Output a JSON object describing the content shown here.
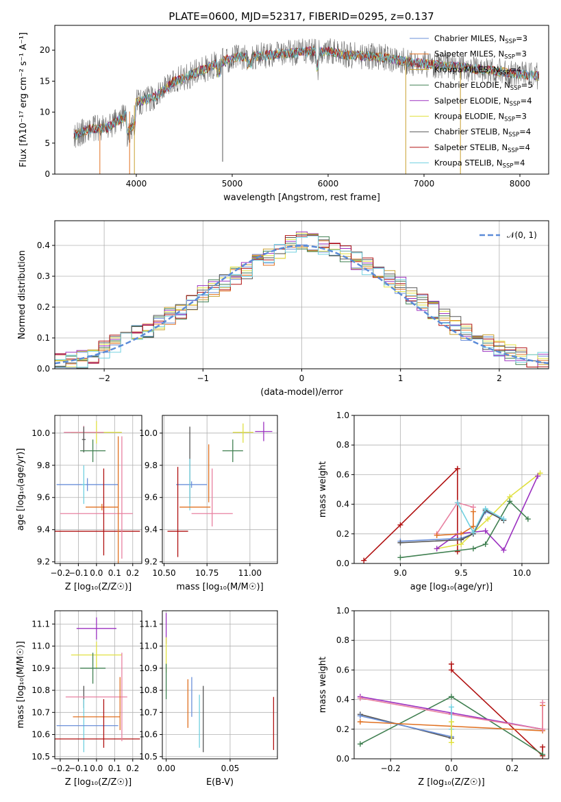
{
  "title": "PLATE=0600, MJD=52317, FIBERID=0295, z=0.137",
  "colors": {
    "miles_chabrier": "#6a8fd9",
    "miles_salpeter": "#e07020",
    "miles_kroupa": "#c8a030",
    "elodie_chabrier": "#3f7f50",
    "elodie_salpeter": "#9b30c0",
    "elodie_kroupa": "#e0e040",
    "stelib_chabrier": "#555555",
    "stelib_salpeter": "#b01010",
    "stelib_kroupa": "#70d0e0",
    "pink": "#e880a0",
    "green2": "#5a8a60"
  },
  "chart_data": [
    {
      "type": "line",
      "id": "spectrum",
      "xlabel": "wavelength [Angstrom, rest frame]",
      "ylabel": "Flux [fλ10⁻¹⁷ erg cm⁻² s⁻¹ A⁻¹]",
      "xlim": [
        3150,
        8300
      ],
      "ylim": [
        0,
        24
      ],
      "xticks": [
        4000,
        5000,
        6000,
        7000,
        8000
      ],
      "yticks": [
        0,
        5,
        10,
        15,
        20
      ],
      "legend": [
        {
          "label": "Chabrier MILES, N",
          "sub": "SSP",
          "suffix": "=3",
          "color": "#6a8fd9"
        },
        {
          "label": "Salpeter MILES, N",
          "sub": "SSP",
          "suffix": "=3",
          "color": "#e07020"
        },
        {
          "label": "Kroupa MILES, N",
          "sub": "SSP",
          "suffix": "=4",
          "color": "#c8a030"
        },
        {
          "label": "Chabrier ELODIE, N",
          "sub": "SSP",
          "suffix": "=5",
          "color": "#3f7f50"
        },
        {
          "label": "Salpeter ELODIE, N",
          "sub": "SSP",
          "suffix": "=4",
          "color": "#9b30c0"
        },
        {
          "label": "Kroupa ELODIE, N",
          "sub": "SSP",
          "suffix": "=3",
          "color": "#e0e040"
        },
        {
          "label": "Chabrier STELIB, N",
          "sub": "SSP",
          "suffix": "=4",
          "color": "#555555"
        },
        {
          "label": "Salpeter STELIB, N",
          "sub": "SSP",
          "suffix": "=4",
          "color": "#b01010"
        },
        {
          "label": "Kroupa STELIB, N",
          "sub": "SSP",
          "suffix": "=4",
          "color": "#70d0e0"
        }
      ],
      "continuum": [
        [
          3350,
          6.2
        ],
        [
          3500,
          7.2
        ],
        [
          3700,
          7.5
        ],
        [
          3900,
          9.5
        ],
        [
          4000,
          11.5
        ],
        [
          4200,
          12.5
        ],
        [
          4400,
          15.0
        ],
        [
          4600,
          16.2
        ],
        [
          4800,
          17.5
        ],
        [
          5000,
          18.8
        ],
        [
          5200,
          19.0
        ],
        [
          5400,
          19.2
        ],
        [
          5600,
          19.5
        ],
        [
          5800,
          19.8
        ],
        [
          6000,
          19.8
        ],
        [
          6200,
          19.2
        ],
        [
          6400,
          19.0
        ],
        [
          6600,
          18.8
        ],
        [
          6800,
          18.2
        ],
        [
          7000,
          17.8
        ],
        [
          7200,
          17.5
        ],
        [
          7400,
          17.2
        ],
        [
          7600,
          16.9
        ],
        [
          7800,
          16.5
        ],
        [
          8000,
          16.1
        ],
        [
          8200,
          15.8
        ]
      ]
    },
    {
      "type": "step",
      "id": "residuals",
      "xlabel": "(data-model)/error",
      "ylabel": "Normed distribution",
      "xlim": [
        -2.5,
        2.5
      ],
      "ylim": [
        0,
        0.48
      ],
      "xticks": [
        -2,
        -1,
        0,
        1,
        2
      ],
      "yticks": [
        0.0,
        0.1,
        0.2,
        0.3,
        0.4
      ],
      "legend_label": "𝒩(0, 1)",
      "legend_color": "#5b8bd8",
      "hist_base": [
        0.02,
        0.025,
        0.03,
        0.045,
        0.06,
        0.08,
        0.1,
        0.115,
        0.13,
        0.15,
        0.17,
        0.19,
        0.215,
        0.24,
        0.26,
        0.28,
        0.3,
        0.32,
        0.345,
        0.365,
        0.385,
        0.405,
        0.415,
        0.41,
        0.4,
        0.385,
        0.37,
        0.35,
        0.33,
        0.31,
        0.29,
        0.27,
        0.24,
        0.215,
        0.19,
        0.165,
        0.14,
        0.12,
        0.1,
        0.08,
        0.065,
        0.05,
        0.04,
        0.03,
        0.025
      ]
    },
    {
      "type": "errorbar",
      "id": "age-vs-Z",
      "xlabel": "Z [log₁₀(Z/Z☉)]",
      "ylabel": "age  [log₁₀(age/yr)]",
      "xlim": [
        -0.23,
        0.25
      ],
      "ylim": [
        9.19,
        10.11
      ],
      "xticks": [
        -0.2,
        -0.1,
        0.0,
        0.1,
        0.2
      ],
      "yticks": [
        9.2,
        9.4,
        9.6,
        9.8,
        10.0
      ],
      "points": [
        {
          "x": 0.0,
          "y": 10.005,
          "xe": 0.14,
          "ye": 0.07,
          "c": "#e0e040"
        },
        {
          "x": -0.07,
          "y": 10.005,
          "xe": 0.11,
          "ye": 0.04,
          "c": "#e880a0"
        },
        {
          "x": -0.07,
          "y": 9.96,
          "xe": 0.01,
          "ye": 0.08,
          "c": "#555555"
        },
        {
          "x": -0.02,
          "y": 9.89,
          "xe": 0.07,
          "ye": 0.07,
          "c": "#3f7f50"
        },
        {
          "x": -0.05,
          "y": 9.68,
          "xe": 0.17,
          "ye": 0.04,
          "c": "#6a8fd9"
        },
        {
          "x": -0.07,
          "y": 9.68,
          "xe": 0.01,
          "ye": 0.12,
          "c": "#70d0e0"
        },
        {
          "x": 0.03,
          "y": 9.54,
          "xe": 0.09,
          "ye": 0.02,
          "c": "#e07020"
        },
        {
          "x": 0.0,
          "y": 9.5,
          "xe": 0.2,
          "ye": 0.0,
          "c": "#e880a0"
        },
        {
          "x": 0.04,
          "y": 9.51,
          "xe": 0.0,
          "ye": 0.27,
          "c": "#b01010"
        },
        {
          "x": 0.0,
          "y": 9.39,
          "xe": 0.24,
          "ye": 0.0,
          "c": "#b01010"
        },
        {
          "x": 0.12,
          "y": 9.58,
          "xe": 0.0,
          "ye": 0.4,
          "c": "#e07020"
        },
        {
          "x": 0.14,
          "y": 9.6,
          "xe": 0.0,
          "ye": 0.38,
          "c": "#e880a0"
        }
      ]
    },
    {
      "type": "errorbar",
      "id": "age-vs-mass",
      "xlabel": "mass [log₁₀(M/M☉)]",
      "ylabel": "",
      "xlim": [
        10.49,
        11.16
      ],
      "ylim": [
        9.19,
        10.11
      ],
      "xticks": [
        10.5,
        10.75,
        11.0
      ],
      "yticks": [
        9.2,
        9.4,
        9.6,
        9.8,
        10.0
      ],
      "points": [
        {
          "x": 10.96,
          "y": 10.005,
          "xe": 0.06,
          "ye": 0.0,
          "c": "#e0e040"
        },
        {
          "x": 10.96,
          "y": 10.0,
          "xe": 0.0,
          "ye": 0.06,
          "c": "#e0e040"
        },
        {
          "x": 11.08,
          "y": 10.01,
          "xe": 0.05,
          "ye": 0.06,
          "c": "#9b30c0"
        },
        {
          "x": 10.9,
          "y": 9.89,
          "xe": 0.06,
          "ye": 0.07,
          "c": "#3f7f50"
        },
        {
          "x": 10.66,
          "y": 9.68,
          "xe": 0.09,
          "ye": 0.02,
          "c": "#6a8fd9"
        },
        {
          "x": 10.65,
          "y": 9.8,
          "xe": 0.0,
          "ye": 0.24,
          "c": "#555555"
        },
        {
          "x": 10.65,
          "y": 9.68,
          "xe": 0.0,
          "ye": 0.16,
          "c": "#70d0e0"
        },
        {
          "x": 10.68,
          "y": 9.54,
          "xe": 0.09,
          "ye": 0.0,
          "c": "#e07020"
        },
        {
          "x": 10.78,
          "y": 9.5,
          "xe": 0.12,
          "ye": 0.0,
          "c": "#e880a0"
        },
        {
          "x": 10.58,
          "y": 9.51,
          "xe": 0.0,
          "ye": 0.28,
          "c": "#b01010"
        },
        {
          "x": 10.58,
          "y": 9.39,
          "xe": 0.06,
          "ye": 0.0,
          "c": "#b01010"
        },
        {
          "x": 10.76,
          "y": 9.75,
          "xe": 0.0,
          "ye": 0.18,
          "c": "#e07020"
        },
        {
          "x": 10.78,
          "y": 9.6,
          "xe": 0.0,
          "ye": 0.18,
          "c": "#e880a0"
        }
      ]
    },
    {
      "type": "line",
      "id": "weight-vs-age",
      "xlabel": "age  [log₁₀(age/yr)]",
      "ylabel": "mass weight",
      "xlim": [
        8.62,
        10.22
      ],
      "ylim": [
        0,
        1.0
      ],
      "xticks": [
        9.0,
        9.5,
        10.0
      ],
      "yticks": [
        0.0,
        0.2,
        0.4,
        0.6,
        0.8,
        1.0
      ],
      "series": [
        {
          "c": "#b01010",
          "pts": [
            [
              8.7,
              0.02
            ],
            [
              9.0,
              0.26
            ],
            [
              9.47,
              0.64
            ],
            [
              9.47,
              0.08
            ]
          ]
        },
        {
          "c": "#e0e040",
          "pts": [
            [
              9.3,
              0.1
            ],
            [
              9.5,
              0.13
            ],
            [
              9.72,
              0.3
            ],
            [
              9.9,
              0.45
            ],
            [
              10.15,
              0.61
            ]
          ]
        },
        {
          "c": "#9b30c0",
          "pts": [
            [
              9.3,
              0.1
            ],
            [
              9.47,
              0.2
            ],
            [
              9.7,
              0.22
            ],
            [
              9.85,
              0.09
            ],
            [
              10.13,
              0.59
            ]
          ]
        },
        {
          "c": "#3f7f50",
          "pts": [
            [
              9.0,
              0.04
            ],
            [
              9.6,
              0.1
            ],
            [
              9.7,
              0.13
            ],
            [
              9.9,
              0.42
            ],
            [
              10.05,
              0.3
            ]
          ]
        },
        {
          "c": "#e880a0",
          "pts": [
            [
              9.3,
              0.2
            ],
            [
              9.47,
              0.41
            ],
            [
              9.6,
              0.38
            ]
          ]
        },
        {
          "c": "#e07020",
          "pts": [
            [
              9.3,
              0.19
            ],
            [
              9.5,
              0.2
            ],
            [
              9.6,
              0.25
            ],
            [
              9.6,
              0.35
            ]
          ]
        },
        {
          "c": "#6a8fd9",
          "pts": [
            [
              9.0,
              0.15
            ],
            [
              9.5,
              0.17
            ],
            [
              9.6,
              0.2
            ],
            [
              9.7,
              0.35
            ],
            [
              9.85,
              0.3
            ]
          ]
        },
        {
          "c": "#555555",
          "pts": [
            [
              9.0,
              0.14
            ],
            [
              9.5,
              0.16
            ],
            [
              9.6,
              0.2
            ],
            [
              9.7,
              0.36
            ],
            [
              9.85,
              0.29
            ]
          ]
        },
        {
          "c": "#70d0e0",
          "pts": [
            [
              9.47,
              0.41
            ],
            [
              9.6,
              0.21
            ],
            [
              9.7,
              0.37
            ],
            [
              9.85,
              0.3
            ]
          ]
        }
      ]
    },
    {
      "type": "errorbar",
      "id": "mass-vs-Z",
      "xlabel": "Z [log₁₀(Z/Z☉)]",
      "ylabel": "mass [log₁₀(M/M☉)]",
      "xlim": [
        -0.23,
        0.25
      ],
      "ylim": [
        10.49,
        11.16
      ],
      "xticks": [
        -0.2,
        -0.1,
        0.0,
        0.1,
        0.2
      ],
      "yticks": [
        10.5,
        10.6,
        10.7,
        10.8,
        10.9,
        11.0,
        11.1
      ],
      "points": [
        {
          "x": 0.0,
          "y": 11.08,
          "xe": 0.11,
          "ye": 0.05,
          "c": "#9b30c0"
        },
        {
          "x": 0.0,
          "y": 10.96,
          "xe": 0.14,
          "ye": 0.06,
          "c": "#e0e040"
        },
        {
          "x": -0.02,
          "y": 10.9,
          "xe": 0.07,
          "ye": 0.07,
          "c": "#3f7f50"
        },
        {
          "x": -0.07,
          "y": 10.77,
          "xe": 0.0,
          "ye": 0.05,
          "c": "#555555"
        },
        {
          "x": -0.07,
          "y": 10.64,
          "xe": 0.0,
          "ye": 0.12,
          "c": "#70d0e0"
        },
        {
          "x": 0.0,
          "y": 10.77,
          "xe": 0.17,
          "ye": 0.0,
          "c": "#e880a0"
        },
        {
          "x": 0.0,
          "y": 10.68,
          "xe": 0.13,
          "ye": 0.0,
          "c": "#e07020"
        },
        {
          "x": -0.05,
          "y": 10.64,
          "xe": 0.17,
          "ye": 0.0,
          "c": "#6a8fd9"
        },
        {
          "x": 0.04,
          "y": 10.65,
          "xe": 0.0,
          "ye": 0.11,
          "c": "#b01010"
        },
        {
          "x": 0.0,
          "y": 10.58,
          "xe": 0.24,
          "ye": 0.0,
          "c": "#b01010"
        },
        {
          "x": 0.13,
          "y": 10.74,
          "xe": 0.0,
          "ye": 0.12,
          "c": "#e07020"
        },
        {
          "x": 0.14,
          "y": 10.77,
          "xe": 0.0,
          "ye": 0.2,
          "c": "#e880a0"
        }
      ]
    },
    {
      "type": "errorbar",
      "id": "mass-vs-ebv",
      "xlabel": "E(B-V)",
      "ylabel": "",
      "xlim": [
        -0.003,
        0.087
      ],
      "ylim": [
        10.49,
        11.16
      ],
      "xticks": [
        0.0,
        0.05
      ],
      "yticks": [
        10.5,
        10.6,
        10.7,
        10.8,
        10.9,
        11.0,
        11.1
      ],
      "points": [
        {
          "x": 0.0,
          "y": 11.08,
          "xe": 0.0,
          "ye": 0.07,
          "c": "#9b30c0"
        },
        {
          "x": 0.0,
          "y": 10.96,
          "xe": 0.0,
          "ye": 0.08,
          "c": "#e0e040"
        },
        {
          "x": 0.0,
          "y": 10.84,
          "xe": 0.0,
          "ye": 0.08,
          "c": "#3f7f50"
        },
        {
          "x": 0.017,
          "y": 10.74,
          "xe": 0.0,
          "ye": 0.11,
          "c": "#e07020"
        },
        {
          "x": 0.02,
          "y": 10.77,
          "xe": 0.0,
          "ye": 0.09,
          "c": "#6a8fd9"
        },
        {
          "x": 0.026,
          "y": 10.66,
          "xe": 0.0,
          "ye": 0.12,
          "c": "#70d0e0"
        },
        {
          "x": 0.029,
          "y": 10.67,
          "xe": 0.0,
          "ye": 0.15,
          "c": "#555555"
        },
        {
          "x": 0.084,
          "y": 10.65,
          "xe": 0.0,
          "ye": 0.12,
          "c": "#b01010"
        }
      ]
    },
    {
      "type": "line",
      "id": "weight-vs-Z",
      "xlabel": "Z [log₁₀(Z/Z☉)]",
      "ylabel": "mass weight",
      "xlim": [
        -0.32,
        0.32
      ],
      "ylim": [
        0,
        1.0
      ],
      "xticks": [
        -0.2,
        0.0,
        0.2
      ],
      "yticks": [
        0.0,
        0.2,
        0.4,
        0.6,
        0.8,
        1.0
      ],
      "series": [
        {
          "c": "#b01010",
          "pts": [
            [
              0.0,
              0.64
            ],
            [
              0.0,
              0.6
            ],
            [
              0.3,
              0.02
            ],
            [
              0.3,
              0.08
            ]
          ]
        },
        {
          "c": "#3f7f50",
          "pts": [
            [
              -0.3,
              0.1
            ],
            [
              0.0,
              0.42
            ],
            [
              0.3,
              0.03
            ]
          ]
        },
        {
          "c": "#555555",
          "pts": [
            [
              -0.3,
              0.3
            ],
            [
              0.0,
              0.14
            ]
          ]
        },
        {
          "c": "#6a8fd9",
          "pts": [
            [
              -0.3,
              0.29
            ],
            [
              0.0,
              0.15
            ]
          ]
        },
        {
          "c": "#e07020",
          "pts": [
            [
              -0.3,
              0.25
            ],
            [
              0.0,
              0.22
            ],
            [
              0.3,
              0.19
            ],
            [
              0.3,
              0.36
            ]
          ]
        },
        {
          "c": "#9b30c0",
          "pts": [
            [
              -0.3,
              0.42
            ],
            [
              0.0,
              0.31
            ],
            [
              0.3,
              0.2
            ]
          ]
        },
        {
          "c": "#e880a0",
          "pts": [
            [
              -0.3,
              0.41
            ],
            [
              0.0,
              0.3
            ],
            [
              0.3,
              0.2
            ],
            [
              0.3,
              0.38
            ]
          ]
        },
        {
          "c": "#70d0e0",
          "pts": [
            [
              0.0,
              0.35
            ],
            [
              0.0,
              0.2
            ]
          ]
        },
        {
          "c": "#e0e040",
          "pts": [
            [
              0.0,
              0.11
            ],
            [
              0.0,
              0.25
            ]
          ]
        }
      ]
    }
  ]
}
